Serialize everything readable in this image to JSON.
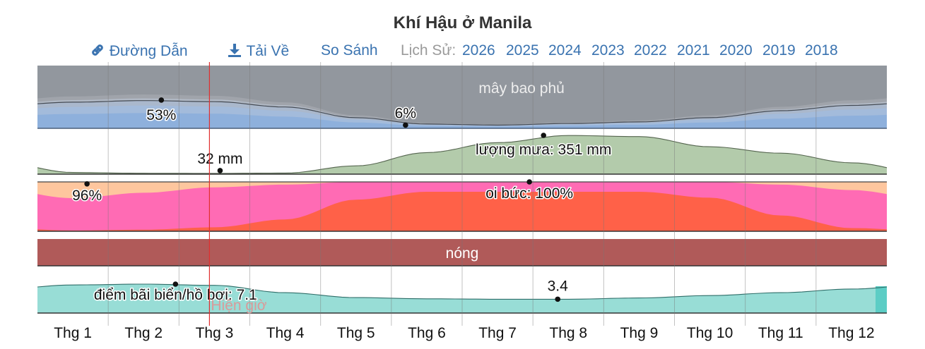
{
  "title": "Khí Hậu ở Manila",
  "toolbar": {
    "link_label": "Đường Dẫn",
    "download_label": "Tải Về",
    "compare_label": "So Sánh",
    "history_label": "Lịch Sử:",
    "years": [
      "2026",
      "2025",
      "2024",
      "2023",
      "2022",
      "2021",
      "2020",
      "2019",
      "2018"
    ]
  },
  "colors": {
    "link": "#3a73b0",
    "cloud_dark": "#92979e",
    "cloud_light": "#aab8cc",
    "clear_blue": "#8eb0dc",
    "rain": "#b3cbab",
    "muggy_light": "#fec69e",
    "muggy_pink": "#ff6bb4",
    "muggy_orange": "#ff6148",
    "hot": "#b05a59",
    "beach": "#98ddd6",
    "now_line": "#e03030"
  },
  "now_marker": {
    "label": "Hiện giờ",
    "month_position": 2.43
  },
  "chart_data": {
    "type": "area",
    "title": "Khí Hậu ở Manila",
    "months": [
      "Thg 1",
      "Thg 2",
      "Thg 3",
      "Thg 4",
      "Thg 5",
      "Thg 6",
      "Thg 7",
      "Thg 8",
      "Thg 9",
      "Thg 10",
      "Thg 11",
      "Thg 12"
    ],
    "series": [
      {
        "name": "mây bao phủ",
        "unit": "%",
        "values": [
          49,
          52,
          50,
          40,
          20,
          8,
          6,
          9,
          12,
          20,
          33,
          43
        ],
        "callouts": [
          {
            "label": "53%",
            "month_position": 1.75,
            "value": 53
          },
          {
            "label": "6%",
            "month_position": 5.2,
            "value": 6
          }
        ]
      },
      {
        "name": "lượng mưa",
        "unit": "mm",
        "values": [
          15,
          8,
          7,
          10,
          75,
          195,
          285,
          350,
          340,
          248,
          190,
          103
        ],
        "callouts": [
          {
            "label": "32 mm",
            "month_position": 2.58,
            "value": 32
          },
          {
            "label": "lượng mưa: 351 mm",
            "month_position": 7.15,
            "value": 351
          }
        ]
      },
      {
        "name": "oi bức",
        "unit": "%",
        "values": [
          94,
          96,
          98,
          99,
          100,
          100,
          100,
          100,
          100,
          100,
          99,
          97
        ],
        "callouts": [
          {
            "label": "96%",
            "month_position": 0.7,
            "value": 96
          },
          {
            "label": "oi bức: 100%",
            "month_position": 6.95,
            "value": 100
          }
        ]
      },
      {
        "name": "nóng",
        "values": [
          1,
          1,
          1,
          1,
          1,
          1,
          1,
          1,
          1,
          1,
          1,
          1
        ],
        "band_label": "nóng"
      },
      {
        "name": "điểm bãi biển/hồ bơi",
        "values": [
          6.9,
          7.1,
          6.8,
          5.0,
          3.8,
          3.5,
          3.4,
          3.4,
          3.7,
          4.3,
          5.0,
          5.9
        ],
        "callouts": [
          {
            "label": "điểm bãi biển/hồ bơi: 7.1",
            "month_position": 1.95,
            "value": 7.1
          },
          {
            "label": "3.4",
            "month_position": 7.35,
            "value": 3.4
          }
        ]
      }
    ]
  }
}
